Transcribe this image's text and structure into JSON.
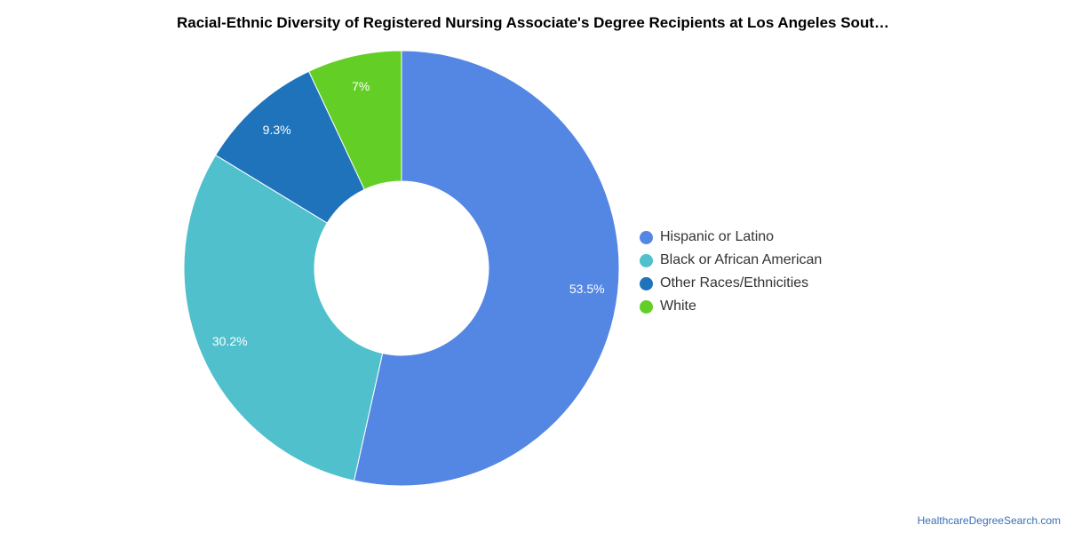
{
  "chart_data": {
    "type": "pie",
    "title": "Racial-Ethnic Diversity of Registered Nursing Associate's Degree Recipients at Los Angeles Sout…",
    "categories": [
      "Hispanic or Latino",
      "Black or African American",
      "Other Races/Ethnicities",
      "White"
    ],
    "values": [
      53.5,
      30.2,
      9.3,
      7.0
    ],
    "value_labels": [
      "53.5%",
      "30.2%",
      "9.3%",
      "7%"
    ],
    "colors": [
      "#5486e3",
      "#50c0cc",
      "#1e73bb",
      "#63cf26"
    ],
    "donut": true,
    "legend_position": "right"
  },
  "source_text": "HealthcareDegreeSearch.com"
}
